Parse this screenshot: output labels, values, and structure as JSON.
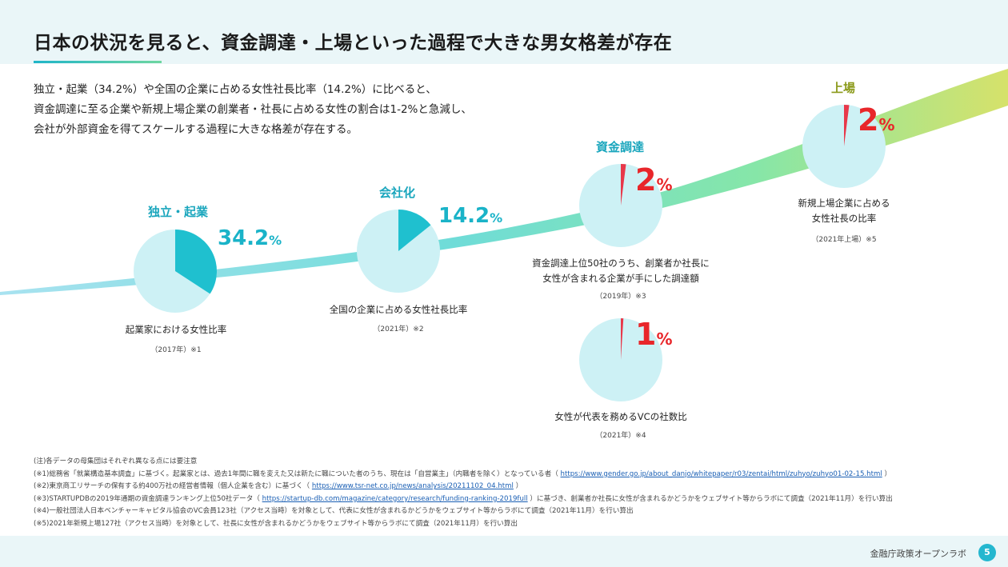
{
  "title": "日本の状況を見ると、資金調達・上場といった過程で大きな男女格差が存在",
  "intro": [
    "独立・起業（34.2%）や全国の企業に占める女性社長比率（14.2%）に比べると、",
    "資金調達に至る企業や新規上場企業の創業者・社長に占める女性の割合は1-2%と急減し、",
    "会社が外部資金を得てスケールする過程に大きな格差が存在する。"
  ],
  "stages": [
    {
      "label": "独立・起業",
      "value": "34.2",
      "unit": "%",
      "share": 34.2,
      "caption": [
        "起業家における女性比率"
      ],
      "source": "（2017年）※1",
      "color": "#1fc0cf"
    },
    {
      "label": "会社化",
      "value": "14.2",
      "unit": "%",
      "share": 14.2,
      "caption": [
        "全国の企業に占める女性社長比率"
      ],
      "source": "（2021年）※2",
      "color": "#1fc0cf"
    },
    {
      "label": "資金調達",
      "value": "2",
      "unit": "%",
      "share": 2,
      "caption": [
        "資金調達上位50社のうち、創業者か社長に",
        "女性が含まれる企業が手にした調達額"
      ],
      "source": "（2019年）※3",
      "color": "#e8384a"
    },
    {
      "label": "",
      "value": "1",
      "unit": "%",
      "share": 1,
      "caption": [
        "女性が代表を務めるVCの社数比"
      ],
      "source": "（2021年）※4",
      "color": "#e8384a"
    },
    {
      "label": "上場",
      "value": "2",
      "unit": "%",
      "share": 2,
      "caption": [
        "新規上場企業に占める",
        "女性社長の比率"
      ],
      "source": "（2021年上場）※5",
      "color": "#e8384a"
    }
  ],
  "notes": [
    {
      "text": "(注)各データの母集団はそれぞれ異なる点には要注意",
      "link": "",
      "after": ""
    },
    {
      "text": "(※1)総務省「就業構造基本調査」に基づく。起業家とは、過去1年間に職を変えた又は新たに職についた者のうち、現在は「自営業主」（内職者を除く）となっている者（ ",
      "link": "https://www.gender.go.jp/about_danjo/whitepaper/r03/zentai/html/zuhyo/zuhyo01-02-15.html",
      "after": " ）"
    },
    {
      "text": "(※2)東京商工リサーチの保有する約400万社の経営者情報（個人企業を含む）に基づく（ ",
      "link": "https://www.tsr-net.co.jp/news/analysis/20211102_04.html",
      "after": " ）"
    },
    {
      "text": "(※3)STARTUPDBの2019年通期の資金調達ランキング上位50社データ（ ",
      "link": "https://startup-db.com/magazine/category/research/funding-ranking-2019full",
      "after": " ）に基づき、創業者か社長に女性が含まれるかどうかをウェブサイト等からラボにて調査（2021年11月）を行い算出"
    },
    {
      "text": "(※4)一般社団法人日本ベンチャーキャピタル協会のVC会員123社（アクセス当時）を対象として、代表に女性が含まれるかどうかをウェブサイト等からラボにて調査（2021年11月）を行い算出",
      "link": "",
      "after": ""
    },
    {
      "text": "(※5)2021年新規上場127社（アクセス当時）を対象として、社長に女性が含まれるかどうかをウェブサイト等からラボにて調査（2021年11月）を行い算出",
      "link": "",
      "after": ""
    }
  ],
  "footer": {
    "org": "金融庁政策オープンラボ",
    "page": "5"
  },
  "colors": {
    "accent": "#1fb5c8",
    "pie_bg": "#cdf1f5",
    "band_start": "#8fdcef",
    "band_end": "#d8e26a",
    "red": "#e8262a",
    "olive": "#8b9a1a"
  }
}
